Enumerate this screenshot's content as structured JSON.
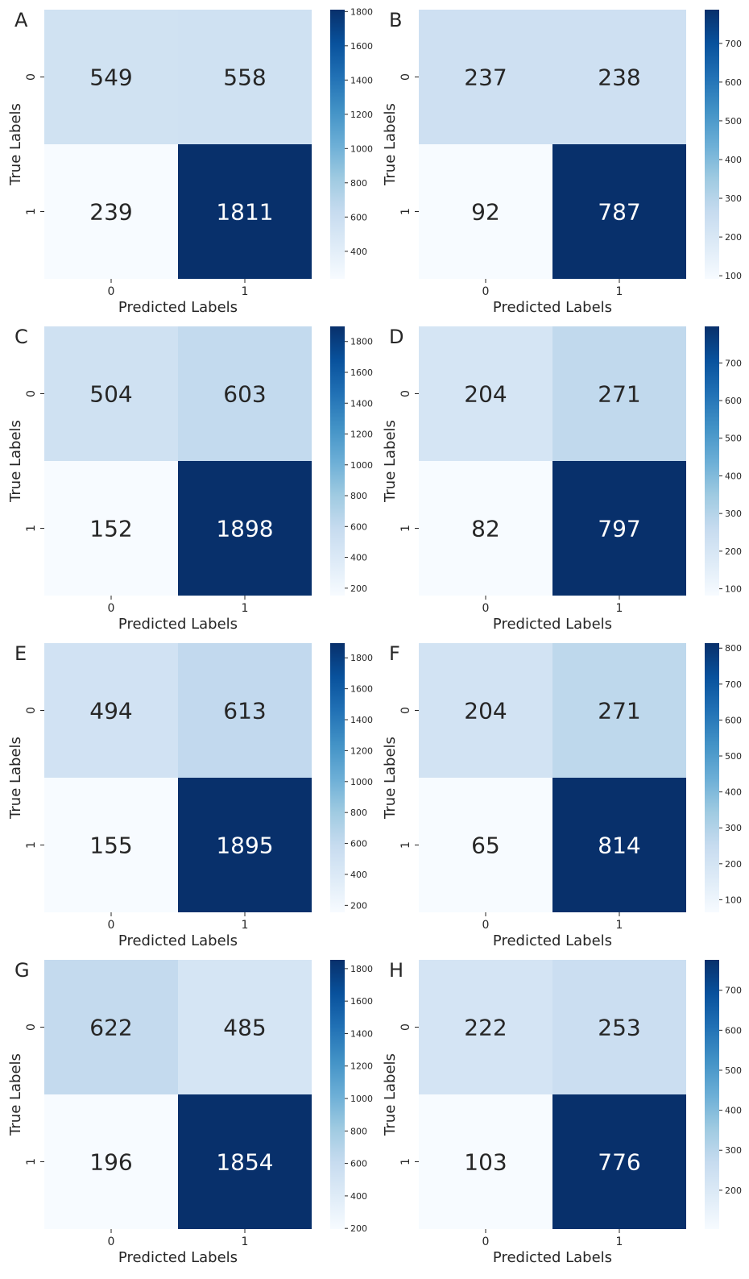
{
  "figure": {
    "xlabel": "Predicted Labels",
    "ylabel": "True Labels",
    "colormap": "Blues",
    "colormap_stops": [
      "#f7fbff",
      "#deebf7",
      "#c6dbef",
      "#9ecae1",
      "#6baed6",
      "#4292c6",
      "#2171b5",
      "#08519c",
      "#08306b"
    ],
    "text_dark": "#262626",
    "text_light": "#ffffff"
  },
  "chart_data": [
    {
      "type": "heatmap",
      "panel_label": "A",
      "x_categories": [
        "0",
        "1"
      ],
      "y_categories": [
        "0",
        "1"
      ],
      "values": [
        [
          549,
          558
        ],
        [
          239,
          1811
        ]
      ],
      "xlabel": "Predicted Labels",
      "ylabel": "True Labels",
      "colorbar": {
        "range": [
          239,
          1811
        ],
        "ticks": [
          400,
          600,
          800,
          1000,
          1200,
          1400,
          1600,
          1800
        ]
      }
    },
    {
      "type": "heatmap",
      "panel_label": "B",
      "x_categories": [
        "0",
        "1"
      ],
      "y_categories": [
        "0",
        "1"
      ],
      "values": [
        [
          237,
          238
        ],
        [
          92,
          787
        ]
      ],
      "xlabel": "Predicted Labels",
      "ylabel": "True Labels",
      "colorbar": {
        "range": [
          92,
          787
        ],
        "ticks": [
          100,
          200,
          300,
          400,
          500,
          600,
          700
        ]
      }
    },
    {
      "type": "heatmap",
      "panel_label": "C",
      "x_categories": [
        "0",
        "1"
      ],
      "y_categories": [
        "0",
        "1"
      ],
      "values": [
        [
          504,
          603
        ],
        [
          152,
          1898
        ]
      ],
      "xlabel": "Predicted Labels",
      "ylabel": "True Labels",
      "colorbar": {
        "range": [
          152,
          1898
        ],
        "ticks": [
          200,
          400,
          600,
          800,
          1000,
          1200,
          1400,
          1600,
          1800
        ]
      }
    },
    {
      "type": "heatmap",
      "panel_label": "D",
      "x_categories": [
        "0",
        "1"
      ],
      "y_categories": [
        "0",
        "1"
      ],
      "values": [
        [
          204,
          271
        ],
        [
          82,
          797
        ]
      ],
      "xlabel": "Predicted Labels",
      "ylabel": "True Labels",
      "colorbar": {
        "range": [
          82,
          797
        ],
        "ticks": [
          100,
          200,
          300,
          400,
          500,
          600,
          700
        ]
      }
    },
    {
      "type": "heatmap",
      "panel_label": "E",
      "x_categories": [
        "0",
        "1"
      ],
      "y_categories": [
        "0",
        "1"
      ],
      "values": [
        [
          494,
          613
        ],
        [
          155,
          1895
        ]
      ],
      "xlabel": "Predicted Labels",
      "ylabel": "True Labels",
      "colorbar": {
        "range": [
          155,
          1895
        ],
        "ticks": [
          200,
          400,
          600,
          800,
          1000,
          1200,
          1400,
          1600,
          1800
        ]
      }
    },
    {
      "type": "heatmap",
      "panel_label": "F",
      "x_categories": [
        "0",
        "1"
      ],
      "y_categories": [
        "0",
        "1"
      ],
      "values": [
        [
          204,
          271
        ],
        [
          65,
          814
        ]
      ],
      "xlabel": "Predicted Labels",
      "ylabel": "True Labels",
      "colorbar": {
        "range": [
          65,
          814
        ],
        "ticks": [
          100,
          200,
          300,
          400,
          500,
          600,
          700,
          800
        ]
      }
    },
    {
      "type": "heatmap",
      "panel_label": "G",
      "x_categories": [
        "0",
        "1"
      ],
      "y_categories": [
        "0",
        "1"
      ],
      "values": [
        [
          622,
          485
        ],
        [
          196,
          1854
        ]
      ],
      "xlabel": "Predicted Labels",
      "ylabel": "True Labels",
      "colorbar": {
        "range": [
          196,
          1854
        ],
        "ticks": [
          200,
          400,
          600,
          800,
          1000,
          1200,
          1400,
          1600,
          1800
        ]
      }
    },
    {
      "type": "heatmap",
      "panel_label": "H",
      "x_categories": [
        "0",
        "1"
      ],
      "y_categories": [
        "0",
        "1"
      ],
      "values": [
        [
          222,
          253
        ],
        [
          103,
          776
        ]
      ],
      "xlabel": "Predicted Labels",
      "ylabel": "True Labels",
      "colorbar": {
        "range": [
          103,
          776
        ],
        "ticks": [
          200,
          300,
          400,
          500,
          600,
          700
        ]
      }
    }
  ]
}
